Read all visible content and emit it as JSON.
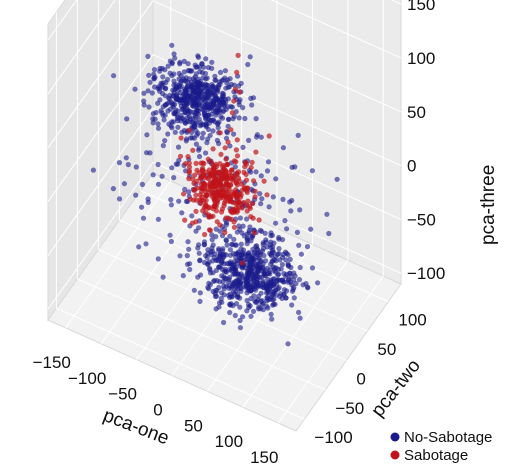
{
  "chart_data": {
    "type": "scatter",
    "projection": "3d",
    "grid": true,
    "legend_position": "bottom-right",
    "axes": {
      "x": {
        "label": "pca-one",
        "range": [
          -175,
          175
        ],
        "ticks": [
          "−150",
          "−100",
          "−50",
          "0",
          "50",
          "100",
          "150"
        ]
      },
      "y": {
        "label": "pca-two",
        "range": [
          -120,
          130
        ],
        "ticks": [
          "−100",
          "−50",
          "0",
          "50",
          "100"
        ]
      },
      "z": {
        "label": "pca-three",
        "range": [
          -110,
          165
        ],
        "ticks": [
          "−100",
          "−50",
          "0",
          "50",
          "100",
          "150"
        ]
      }
    },
    "series": [
      {
        "name": "No-Sabotage",
        "color": "#1a1a8c",
        "clusters": [
          {
            "center": [
              -80,
              70,
              20
            ],
            "spread": [
              28,
              22,
              8
            ],
            "count": 520
          },
          {
            "center": [
              80,
              -70,
              -20
            ],
            "spread": [
              30,
              24,
              9
            ],
            "count": 560
          },
          {
            "center": [
              0,
              0,
              0
            ],
            "spread": [
              60,
              45,
              25
            ],
            "count": 180
          }
        ],
        "outliers": [
          [
            -120,
            10,
            -60
          ],
          [
            -60,
            -40,
            -80
          ],
          [
            40,
            60,
            -90
          ],
          [
            150,
            20,
            40
          ],
          [
            120,
            -30,
            70
          ],
          [
            -140,
            90,
            -20
          ],
          [
            60,
            -110,
            20
          ],
          [
            -20,
            100,
            60
          ],
          [
            100,
            80,
            -40
          ],
          [
            -100,
            -60,
            30
          ],
          [
            30,
            -20,
            -100
          ],
          [
            -50,
            30,
            80
          ],
          [
            140,
            -90,
            -10
          ],
          [
            10,
            110,
            -50
          ]
        ]
      },
      {
        "name": "Sabotage",
        "color": "#c0141a",
        "clusters": [
          {
            "center": [
              -5,
              0,
              -5
            ],
            "spread": [
              18,
              14,
              10
            ],
            "count": 260
          },
          {
            "center": [
              10,
              -10,
              10
            ],
            "spread": [
              30,
              24,
              20
            ],
            "count": 70
          }
        ],
        "outliers": [
          [
            40,
            -30,
            150
          ],
          [
            35,
            -25,
            130
          ],
          [
            30,
            -20,
            110
          ],
          [
            25,
            -15,
            95
          ],
          [
            20,
            -10,
            80
          ],
          [
            15,
            -5,
            60
          ],
          [
            45,
            -35,
            120
          ],
          [
            -30,
            20,
            -60
          ],
          [
            -40,
            25,
            -70
          ],
          [
            5,
            5,
            40
          ]
        ]
      }
    ]
  }
}
